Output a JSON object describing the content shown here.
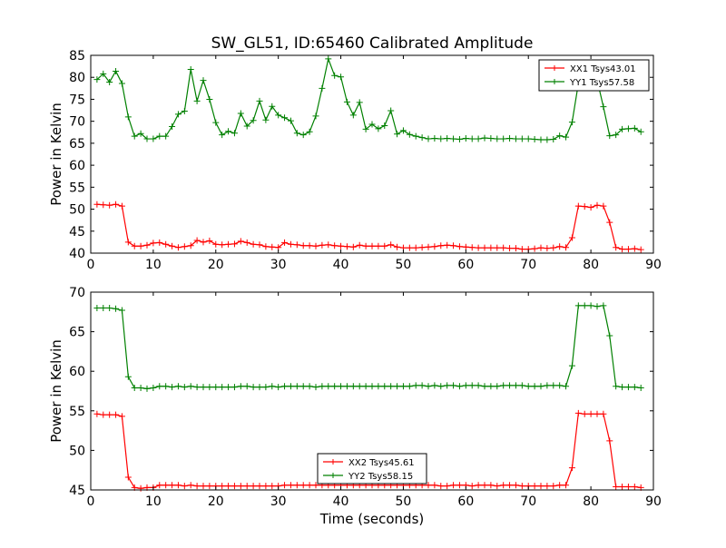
{
  "figure": {
    "title": "SW_GL51, ID:65460 Calibrated Amplitude",
    "background": "#ffffff"
  },
  "chart_data": [
    {
      "type": "line",
      "title": "SW_GL51, ID:65460 Calibrated Amplitude",
      "xlabel": "",
      "ylabel": "Power in Kelvin",
      "xlim": [
        0,
        90
      ],
      "ylim": [
        40,
        85
      ],
      "xticks": [
        0,
        10,
        20,
        30,
        40,
        50,
        60,
        70,
        80,
        90
      ],
      "yticks": [
        40,
        45,
        50,
        55,
        60,
        65,
        70,
        75,
        80,
        85
      ],
      "grid": false,
      "legend_position": "top-right",
      "series": [
        {
          "name": "XX1 Tsys43.01",
          "color": "#ff0000",
          "marker": "+",
          "x": [
            1,
            2,
            3,
            4,
            5,
            6,
            7,
            8,
            9,
            10,
            11,
            12,
            13,
            14,
            15,
            16,
            17,
            18,
            19,
            20,
            21,
            22,
            23,
            24,
            25,
            26,
            27,
            28,
            29,
            30,
            31,
            32,
            33,
            34,
            35,
            36,
            37,
            38,
            39,
            40,
            41,
            42,
            43,
            44,
            45,
            46,
            47,
            48,
            49,
            50,
            51,
            52,
            53,
            54,
            55,
            56,
            57,
            58,
            59,
            60,
            61,
            62,
            63,
            64,
            65,
            66,
            67,
            68,
            69,
            70,
            71,
            72,
            73,
            74,
            75,
            76,
            77,
            78,
            79,
            80,
            81,
            82,
            83,
            84,
            85,
            86,
            87,
            88
          ],
          "values": [
            51.1,
            51.0,
            50.9,
            51.1,
            50.7,
            42.5,
            41.6,
            41.6,
            41.8,
            42.3,
            42.4,
            42.0,
            41.6,
            41.3,
            41.5,
            41.7,
            42.9,
            42.5,
            42.8,
            42.0,
            41.9,
            42.0,
            42.1,
            42.7,
            42.4,
            42.0,
            41.9,
            41.5,
            41.4,
            41.3,
            42.4,
            42.0,
            41.9,
            41.7,
            41.7,
            41.6,
            41.8,
            41.9,
            41.7,
            41.6,
            41.5,
            41.4,
            41.8,
            41.6,
            41.6,
            41.6,
            41.6,
            41.9,
            41.4,
            41.2,
            41.2,
            41.2,
            41.3,
            41.4,
            41.5,
            41.7,
            41.8,
            41.7,
            41.5,
            41.4,
            41.3,
            41.2,
            41.2,
            41.2,
            41.2,
            41.2,
            41.1,
            41.1,
            40.9,
            40.9,
            41.0,
            41.2,
            41.1,
            41.2,
            41.5,
            41.3,
            43.5,
            50.7,
            50.6,
            50.4,
            50.9,
            50.7,
            47.0,
            41.3,
            40.9,
            40.9,
            41.0,
            40.8
          ]
        },
        {
          "name": "YY1 Tsys57.58",
          "color": "#008000",
          "marker": "+",
          "x": [
            1,
            2,
            3,
            4,
            5,
            6,
            7,
            8,
            9,
            10,
            11,
            12,
            13,
            14,
            15,
            16,
            17,
            18,
            19,
            20,
            21,
            22,
            23,
            24,
            25,
            26,
            27,
            28,
            29,
            30,
            31,
            32,
            33,
            34,
            35,
            36,
            37,
            38,
            39,
            40,
            41,
            42,
            43,
            44,
            45,
            46,
            47,
            48,
            49,
            50,
            51,
            52,
            53,
            54,
            55,
            56,
            57,
            58,
            59,
            60,
            61,
            62,
            63,
            64,
            65,
            66,
            67,
            68,
            69,
            70,
            71,
            72,
            73,
            74,
            75,
            76,
            77,
            78,
            79,
            80,
            81,
            82,
            83,
            84,
            85,
            86,
            87,
            88
          ],
          "values": [
            79.5,
            80.8,
            78.9,
            81.4,
            78.6,
            71.0,
            66.6,
            67.2,
            66.0,
            66.0,
            66.6,
            66.6,
            68.8,
            71.6,
            72.3,
            81.8,
            74.6,
            79.3,
            75.0,
            69.7,
            66.9,
            67.7,
            67.3,
            71.8,
            68.9,
            70.2,
            74.6,
            70.3,
            73.4,
            71.4,
            70.8,
            70.1,
            67.3,
            66.9,
            67.6,
            71.2,
            77.5,
            84.2,
            80.4,
            80.1,
            74.4,
            71.4,
            74.3,
            68.2,
            69.3,
            68.3,
            69.0,
            72.4,
            67.1,
            67.9,
            67.0,
            66.6,
            66.3,
            66.0,
            66.1,
            66.0,
            66.1,
            66.0,
            65.9,
            66.1,
            66.0,
            66.0,
            66.2,
            66.1,
            66.0,
            66.0,
            66.1,
            66.0,
            66.0,
            66.0,
            65.9,
            65.8,
            65.8,
            65.9,
            66.7,
            66.4,
            69.8,
            78.6,
            79.8,
            79.6,
            79.4,
            73.3,
            66.7,
            66.9,
            68.2,
            68.3,
            68.4,
            67.6
          ]
        }
      ]
    },
    {
      "type": "line",
      "title": "",
      "xlabel": "Time (seconds)",
      "ylabel": "Power in Kelvin",
      "xlim": [
        0,
        90
      ],
      "ylim": [
        45,
        70
      ],
      "xticks": [
        0,
        10,
        20,
        30,
        40,
        50,
        60,
        70,
        80,
        90
      ],
      "yticks": [
        45,
        50,
        55,
        60,
        65,
        70
      ],
      "grid": false,
      "legend_position": "bottom-center",
      "series": [
        {
          "name": "XX2 Tsys45.61",
          "color": "#ff0000",
          "marker": "+",
          "x": [
            1,
            2,
            3,
            4,
            5,
            6,
            7,
            8,
            9,
            10,
            11,
            12,
            13,
            14,
            15,
            16,
            17,
            18,
            19,
            20,
            21,
            22,
            23,
            24,
            25,
            26,
            27,
            28,
            29,
            30,
            31,
            32,
            33,
            34,
            35,
            36,
            37,
            38,
            39,
            40,
            41,
            42,
            43,
            44,
            45,
            46,
            47,
            48,
            49,
            50,
            51,
            52,
            53,
            54,
            55,
            56,
            57,
            58,
            59,
            60,
            61,
            62,
            63,
            64,
            65,
            66,
            67,
            68,
            69,
            70,
            71,
            72,
            73,
            74,
            75,
            76,
            77,
            78,
            79,
            80,
            81,
            82,
            83,
            84,
            85,
            86,
            87,
            88
          ],
          "values": [
            54.6,
            54.5,
            54.5,
            54.5,
            54.3,
            46.6,
            45.3,
            45.2,
            45.3,
            45.3,
            45.6,
            45.6,
            45.6,
            45.6,
            45.5,
            45.6,
            45.5,
            45.5,
            45.5,
            45.5,
            45.5,
            45.5,
            45.5,
            45.5,
            45.5,
            45.5,
            45.5,
            45.5,
            45.5,
            45.5,
            45.6,
            45.6,
            45.6,
            45.6,
            45.6,
            45.6,
            45.6,
            45.6,
            45.6,
            45.6,
            45.6,
            45.6,
            45.6,
            45.6,
            45.6,
            45.6,
            45.6,
            45.6,
            45.6,
            45.6,
            45.6,
            45.6,
            45.6,
            45.6,
            45.6,
            45.5,
            45.5,
            45.6,
            45.6,
            45.6,
            45.5,
            45.6,
            45.6,
            45.6,
            45.5,
            45.6,
            45.6,
            45.6,
            45.5,
            45.5,
            45.5,
            45.5,
            45.5,
            45.5,
            45.6,
            45.6,
            47.8,
            54.7,
            54.6,
            54.6,
            54.6,
            54.6,
            51.2,
            45.4,
            45.4,
            45.4,
            45.4,
            45.3
          ]
        },
        {
          "name": "YY2 Tsys58.15",
          "color": "#008000",
          "marker": "+",
          "x": [
            1,
            2,
            3,
            4,
            5,
            6,
            7,
            8,
            9,
            10,
            11,
            12,
            13,
            14,
            15,
            16,
            17,
            18,
            19,
            20,
            21,
            22,
            23,
            24,
            25,
            26,
            27,
            28,
            29,
            30,
            31,
            32,
            33,
            34,
            35,
            36,
            37,
            38,
            39,
            40,
            41,
            42,
            43,
            44,
            45,
            46,
            47,
            48,
            49,
            50,
            51,
            52,
            53,
            54,
            55,
            56,
            57,
            58,
            59,
            60,
            61,
            62,
            63,
            64,
            65,
            66,
            67,
            68,
            69,
            70,
            71,
            72,
            73,
            74,
            75,
            76,
            77,
            78,
            79,
            80,
            81,
            82,
            83,
            84,
            85,
            86,
            87,
            88
          ],
          "values": [
            68.0,
            68.0,
            68.0,
            67.9,
            67.7,
            59.3,
            57.9,
            57.9,
            57.8,
            57.9,
            58.1,
            58.1,
            58.0,
            58.1,
            58.0,
            58.1,
            58.0,
            58.0,
            58.0,
            58.0,
            58.0,
            58.0,
            58.0,
            58.1,
            58.1,
            58.0,
            58.0,
            58.0,
            58.1,
            58.0,
            58.1,
            58.1,
            58.1,
            58.1,
            58.1,
            58.0,
            58.1,
            58.1,
            58.1,
            58.1,
            58.1,
            58.1,
            58.1,
            58.1,
            58.1,
            58.1,
            58.1,
            58.1,
            58.1,
            58.1,
            58.1,
            58.2,
            58.2,
            58.1,
            58.2,
            58.1,
            58.2,
            58.2,
            58.1,
            58.2,
            58.2,
            58.2,
            58.1,
            58.1,
            58.1,
            58.2,
            58.2,
            58.2,
            58.2,
            58.1,
            58.1,
            58.1,
            58.2,
            58.2,
            58.2,
            58.1,
            60.7,
            68.3,
            68.3,
            68.3,
            68.2,
            68.3,
            64.5,
            58.1,
            58.0,
            58.0,
            58.0,
            57.9
          ]
        }
      ]
    }
  ]
}
